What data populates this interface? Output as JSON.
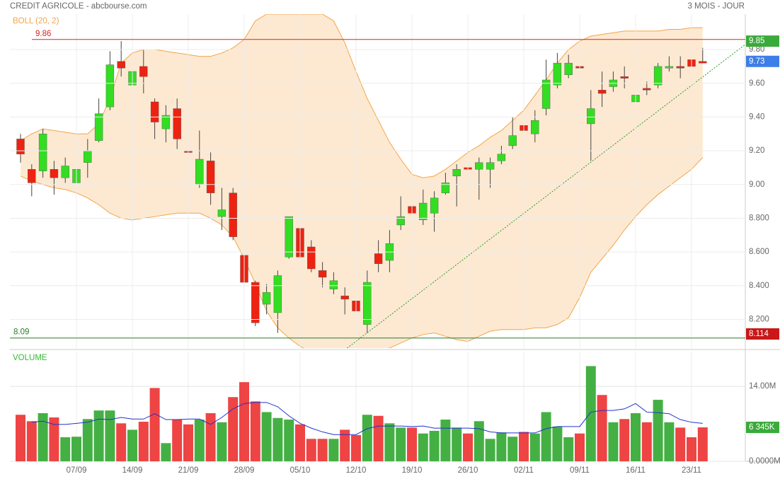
{
  "chart_data": {
    "type": "candlestick",
    "title": "CREDIT AGRICOLE - abcbourse.com",
    "period": "3 MOIS - JOUR",
    "categories": [
      null,
      null,
      null,
      null,
      null,
      "07/09",
      null,
      null,
      null,
      null,
      "14/09",
      null,
      null,
      null,
      null,
      "21/09",
      null,
      null,
      null,
      null,
      "28/09",
      null,
      null,
      null,
      null,
      "05/10",
      null,
      null,
      null,
      null,
      "12/10",
      null,
      null,
      null,
      null,
      "19/10",
      null,
      null,
      null,
      null,
      "26/10",
      null,
      null,
      null,
      null,
      "02/11",
      null,
      null,
      null,
      null,
      "09/11",
      null,
      null,
      null,
      null,
      "16/11",
      null,
      null,
      null,
      null,
      "23/11",
      null
    ],
    "open": [
      9.27,
      9.09,
      9.08,
      9.09,
      9.04,
      9.01,
      9.13,
      9.26,
      9.46,
      9.73,
      9.59,
      9.7,
      9.49,
      9.33,
      9.45,
      9.2,
      9.0,
      9.14,
      8.81,
      8.95,
      8.58,
      8.42,
      8.29,
      8.24,
      8.57,
      8.74,
      8.63,
      8.49,
      8.38,
      8.34,
      8.31,
      8.17,
      8.59,
      8.55,
      8.76,
      8.87,
      8.79,
      8.83,
      8.95,
      9.05,
      9.1,
      9.09,
      9.09,
      9.14,
      9.23,
      9.35,
      9.3,
      9.45,
      9.59,
      9.65,
      9.7,
      9.36,
      9.56,
      9.58,
      9.64,
      9.49,
      9.57,
      9.59,
      9.69,
      9.7,
      9.74,
      9.73
    ],
    "high": [
      9.3,
      9.12,
      9.33,
      9.14,
      9.16,
      9.12,
      9.27,
      9.51,
      9.79,
      9.85,
      9.74,
      9.8,
      9.51,
      9.47,
      9.51,
      9.25,
      9.32,
      9.19,
      8.98,
      8.98,
      8.64,
      8.43,
      8.41,
      8.49,
      8.81,
      8.76,
      8.67,
      8.54,
      8.48,
      8.39,
      8.39,
      8.49,
      8.67,
      8.73,
      8.93,
      8.93,
      8.97,
      8.96,
      9.07,
      9.12,
      9.15,
      9.16,
      9.16,
      9.23,
      9.4,
      9.42,
      9.44,
      9.74,
      9.78,
      9.77,
      9.79,
      9.56,
      9.67,
      9.67,
      9.7,
      9.56,
      9.61,
      9.72,
      9.76,
      9.76,
      9.76,
      9.81
    ],
    "low": [
      9.13,
      8.93,
      9.04,
      8.94,
      9.01,
      8.94,
      9.04,
      9.25,
      9.44,
      9.64,
      9.49,
      9.54,
      9.27,
      9.25,
      9.21,
      9.04,
      8.98,
      8.88,
      8.73,
      8.67,
      8.2,
      8.16,
      8.23,
      8.12,
      8.56,
      8.56,
      8.48,
      8.39,
      8.35,
      8.23,
      8.1,
      8.12,
      8.48,
      8.48,
      8.73,
      8.79,
      8.76,
      8.72,
      8.94,
      8.87,
      9.04,
      8.91,
      8.98,
      9.12,
      9.21,
      9.25,
      9.25,
      9.41,
      9.57,
      9.63,
      9.57,
      9.14,
      9.46,
      9.55,
      9.57,
      9.43,
      9.53,
      9.57,
      9.67,
      9.63,
      9.67,
      9.72
    ],
    "close": [
      9.18,
      9.01,
      9.3,
      9.04,
      9.11,
      9.09,
      9.2,
      9.42,
      9.71,
      9.69,
      9.67,
      9.64,
      9.37,
      9.41,
      9.27,
      9.19,
      9.15,
      8.95,
      8.85,
      8.69,
      8.42,
      8.18,
      8.36,
      8.46,
      8.81,
      8.57,
      8.5,
      8.45,
      8.43,
      8.32,
      8.25,
      8.42,
      8.53,
      8.65,
      8.81,
      8.83,
      8.89,
      8.92,
      9.01,
      9.09,
      9.09,
      9.13,
      9.13,
      9.18,
      9.29,
      9.32,
      9.38,
      9.62,
      9.72,
      9.72,
      9.69,
      9.45,
      9.54,
      9.62,
      9.63,
      9.53,
      9.56,
      9.7,
      9.7,
      9.69,
      9.7,
      9.72
    ],
    "up_color": "#33dd22",
    "down_color": "#ee2211",
    "ylim": [
      8.03,
      10.01
    ],
    "yticks": [
      {
        "value": 8.2,
        "label": "8.200"
      },
      {
        "value": 8.4,
        "label": "8.400"
      },
      {
        "value": 8.6,
        "label": "8.600"
      },
      {
        "value": 8.8,
        "label": "8.800"
      },
      {
        "value": 9,
        "label": "9.00"
      },
      {
        "value": 9.2,
        "label": "9.20"
      },
      {
        "value": 9.4,
        "label": "9.40"
      },
      {
        "value": 9.6,
        "label": "9.60"
      },
      {
        "value": 9.8,
        "label": "9.80"
      }
    ],
    "grid": true,
    "bollinger": {
      "name": "BOLL (20, 2)",
      "color": "#f2a548",
      "fill": "#fde9d2",
      "upper": [
        9.26,
        9.3,
        9.33,
        9.32,
        9.31,
        9.3,
        9.3,
        9.36,
        9.51,
        9.72,
        9.78,
        9.8,
        9.8,
        9.79,
        9.78,
        9.77,
        9.76,
        9.76,
        9.78,
        9.81,
        9.86,
        9.97,
        10.01,
        10.01,
        10.01,
        10.01,
        10.01,
        10.01,
        9.97,
        9.84,
        9.67,
        9.51,
        9.38,
        9.25,
        9.15,
        9.06,
        9.04,
        9.05,
        9.09,
        9.14,
        9.19,
        9.23,
        9.28,
        9.32,
        9.38,
        9.44,
        9.53,
        9.62,
        9.72,
        9.8,
        9.85,
        9.88,
        9.89,
        9.9,
        9.91,
        9.91,
        9.91,
        9.91,
        9.92,
        9.92,
        9.93,
        9.93
      ],
      "lower": [
        9.05,
        9.02,
        9.0,
        8.98,
        8.97,
        8.95,
        8.92,
        8.88,
        8.83,
        8.8,
        8.79,
        8.8,
        8.81,
        8.82,
        8.83,
        8.83,
        8.83,
        8.8,
        8.76,
        8.69,
        8.56,
        8.41,
        8.25,
        8.15,
        8.09,
        8.04,
        8.01,
        8.0,
        7.99,
        7.99,
        8.0,
        8.01,
        8.01,
        8.03,
        8.06,
        8.09,
        8.11,
        8.12,
        8.1,
        8.08,
        8.07,
        8.1,
        8.13,
        8.14,
        8.14,
        8.14,
        8.15,
        8.15,
        8.17,
        8.21,
        8.33,
        8.48,
        8.56,
        8.64,
        8.73,
        8.81,
        8.88,
        8.94,
        8.99,
        9.04,
        9.09,
        9.16
      ]
    },
    "ref_lines": [
      {
        "value": 9.86,
        "color": "#dd2222"
      },
      {
        "value": 8.09,
        "color": "#2a7a2a"
      }
    ],
    "tags": [
      {
        "value": 9.85,
        "color": "#3aaa3a"
      },
      {
        "value": 9.73,
        "color": "#3d7ee8"
      },
      {
        "value": 8.114,
        "color": "#c81818"
      }
    ],
    "trendline": {
      "x": [
        29.2,
        64.8
      ],
      "y": [
        8.03,
        9.83
      ],
      "color": "#2a9a2a"
    },
    "volume": {
      "name": "VOLUME",
      "name_color": "#33bb33",
      "values": [
        8.7,
        7.5,
        9.0,
        8.2,
        4.5,
        4.6,
        7.9,
        9.5,
        9.5,
        7.1,
        5.9,
        7.4,
        13.7,
        3.4,
        7.8,
        6.9,
        7.8,
        9.0,
        7.3,
        12.0,
        14.8,
        11.2,
        9.2,
        8.1,
        7.8,
        6.9,
        4.2,
        4.2,
        4.2,
        5.9,
        4.9,
        8.7,
        8.5,
        7.1,
        6.3,
        6.3,
        5.2,
        5.7,
        7.8,
        6.3,
        5.2,
        7.5,
        4.2,
        5.4,
        4.6,
        5.5,
        5.2,
        9.2,
        6.5,
        4.5,
        5.2,
        17.8,
        12.4,
        7.3,
        7.9,
        9.0,
        7.3,
        11.5,
        7.3,
        6.3,
        4.5,
        6.345
      ],
      "up_color": "#44b044",
      "down_color": "#ee4444",
      "ma": [
        null,
        7.3,
        7.5,
        6.9,
        6.9,
        7.1,
        7.3,
        7.9,
        7.8,
        8.2,
        7.9,
        7.9,
        8.9,
        7.8,
        7.8,
        7.9,
        7.9,
        6.9,
        8.2,
        9.8,
        10.8,
        11.0,
        11.0,
        10.2,
        8.5,
        7.1,
        6.2,
        5.5,
        5.0,
        5.0,
        5.0,
        6.1,
        6.6,
        6.6,
        6.6,
        6.5,
        6.6,
        6.2,
        6.2,
        6.2,
        6.2,
        6.1,
        5.5,
        5.3,
        5.3,
        5.3,
        5.3,
        6.1,
        6.5,
        6.5,
        6.5,
        9.2,
        9.5,
        9.5,
        9.8,
        10.8,
        9.2,
        9.1,
        8.9,
        7.8,
        7.3,
        7.1
      ],
      "ma_color": "#2233cc",
      "ylim": [
        0,
        20.5
      ],
      "yticks": [
        {
          "value": 0,
          "label": "0.0000M"
        },
        {
          "value": 14,
          "label": "14.00M"
        }
      ],
      "tag": {
        "value": 6.345,
        "label": "6 345K",
        "color": "#3aaa3a"
      }
    }
  }
}
